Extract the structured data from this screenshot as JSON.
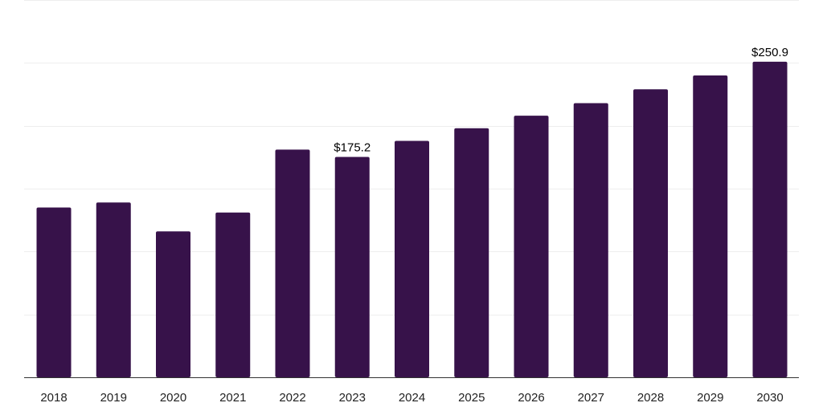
{
  "chart_data": {
    "type": "bar",
    "categories": [
      "2018",
      "2019",
      "2020",
      "2021",
      "2022",
      "2023",
      "2024",
      "2025",
      "2026",
      "2027",
      "2028",
      "2029",
      "2030"
    ],
    "values": [
      135,
      139,
      116,
      131,
      181,
      175.2,
      188,
      198,
      208,
      218,
      229,
      240,
      250.9
    ],
    "data_labels": [
      {
        "index": 5,
        "text": "$175.2"
      },
      {
        "index": 12,
        "text": "$250.9"
      }
    ],
    "title": "",
    "xlabel": "",
    "ylabel": "",
    "ylim": [
      0,
      300
    ],
    "gridlines": [
      0,
      50,
      100,
      150,
      200,
      250,
      300
    ],
    "grid": true,
    "legend": "none",
    "colors": {
      "bar": "#37124a",
      "grid": "#eeeeee",
      "axis": "#333333"
    }
  }
}
